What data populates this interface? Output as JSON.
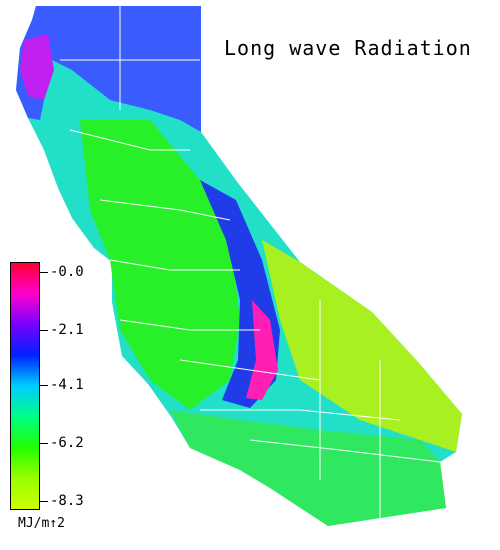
{
  "title": "Long wave Radiation",
  "legend": {
    "colors": [
      "#ff0033",
      "#ff00cc",
      "#7700ff",
      "#0022ff",
      "#00ccff",
      "#00ff88",
      "#22ff00",
      "#99ff00",
      "#ccff00"
    ],
    "ticks": [
      {
        "label": "-0.0",
        "value": 0.0
      },
      {
        "label": "-2.1",
        "value": -2.1
      },
      {
        "label": "-4.1",
        "value": -4.1
      },
      {
        "label": "-6.2",
        "value": -6.2
      },
      {
        "label": "-8.3",
        "value": -8.3
      }
    ],
    "unit": "MJ/m↑2"
  },
  "map": {
    "fill_colors": {
      "northwest": "#3a5cff",
      "north_coast_magenta": "#c020f0",
      "central_cyan": "#22e0c8",
      "valley_green": "#28f028",
      "sierra_blue": "#1f3ce8",
      "sierra_magenta": "#ff1fb4",
      "desert_yellow": "#a8f020",
      "south_green": "#30e860",
      "boundary": "#ffffff"
    }
  }
}
